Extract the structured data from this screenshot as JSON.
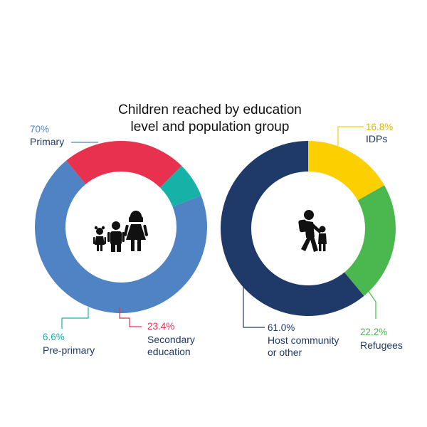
{
  "title": [
    "Children reached by education",
    "level and population group"
  ],
  "chart_data": [
    {
      "type": "pie",
      "donut": true,
      "categories": [
        "Primary",
        "Secondary education",
        "Pre-primary"
      ],
      "values": [
        70,
        23.4,
        6.6
      ],
      "value_labels": [
        "70%",
        "23.4%",
        "6.6%"
      ],
      "label_lines": [
        [
          "Primary"
        ],
        [
          "Secondary",
          "education"
        ],
        [
          "Pre-primary"
        ]
      ],
      "colors": [
        "#4f83c4",
        "#e8314f",
        "#16b2a7"
      ],
      "center_icon": "children-family-icon"
    },
    {
      "type": "pie",
      "donut": true,
      "categories": [
        "IDPs",
        "Refugees",
        "Host community or other"
      ],
      "values": [
        16.8,
        22.2,
        61.0
      ],
      "value_labels": [
        "16.8%",
        "22.2%",
        "61.0%"
      ],
      "label_lines": [
        [
          "IDPs"
        ],
        [
          "Refugees"
        ],
        [
          "Host community",
          "or other"
        ]
      ],
      "colors": [
        "#fccf00",
        "#4ab84e",
        "#1f3a68"
      ],
      "center_icon": "adult-walking-with-child-icon"
    }
  ]
}
